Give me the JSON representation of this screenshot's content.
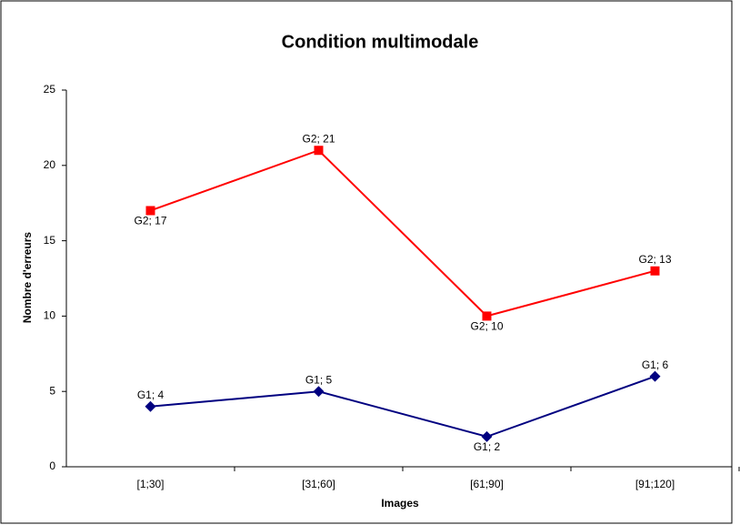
{
  "chart_data": {
    "type": "line",
    "title": "Condition multimodale",
    "x_label": "Images",
    "y_label": "Nombre d'erreurs",
    "categories": [
      "[1;30]",
      "[31;60]",
      "[61;90]",
      "[91;120]"
    ],
    "series": [
      {
        "color": "#000080",
        "marker": "diamond",
        "values": [
          4,
          5,
          2,
          6
        ],
        "value_labels": [
          "G1; 4",
          "G1; 5",
          "G1; 2",
          "G1; 6"
        ]
      },
      {
        "color": "#ff0000",
        "marker": "square",
        "values": [
          17,
          21,
          10,
          13
        ],
        "value_labels": [
          "G2; 17",
          "G2; 21",
          "G2; 10",
          "G2; 13"
        ]
      }
    ],
    "ylim": [
      0,
      25
    ],
    "yticks": [
      0,
      5,
      10,
      15,
      20,
      25
    ],
    "grid": false
  }
}
